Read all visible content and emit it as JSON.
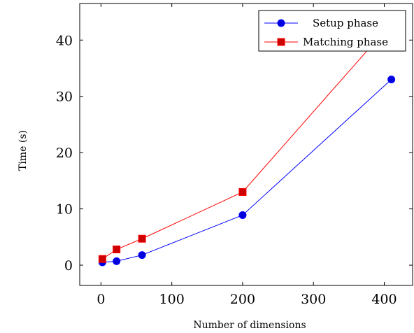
{
  "chart_data": {
    "type": "line",
    "title": "",
    "xlabel": "Number of dimensions",
    "ylabel": "Time (s)",
    "xlim": [
      -30,
      440
    ],
    "ylim": [
      -3.6,
      46.5
    ],
    "xticks": [
      0,
      100,
      200,
      300,
      400
    ],
    "yticks": [
      0,
      10,
      20,
      30,
      40
    ],
    "grid": false,
    "legend_position": "top-right",
    "series": [
      {
        "name": "Setup phase",
        "color": "#0000ff",
        "marker": "circle",
        "x": [
          2,
          22,
          58,
          200,
          410
        ],
        "y": [
          0.5,
          0.7,
          1.8,
          8.9,
          33
        ]
      },
      {
        "name": "Matching phase",
        "color": "#ff0000",
        "marker_fill": "#cc0000",
        "marker": "square",
        "x": [
          2,
          22,
          58,
          200,
          410
        ],
        "y": [
          1.1,
          2.8,
          4.7,
          13,
          43
        ]
      }
    ]
  }
}
